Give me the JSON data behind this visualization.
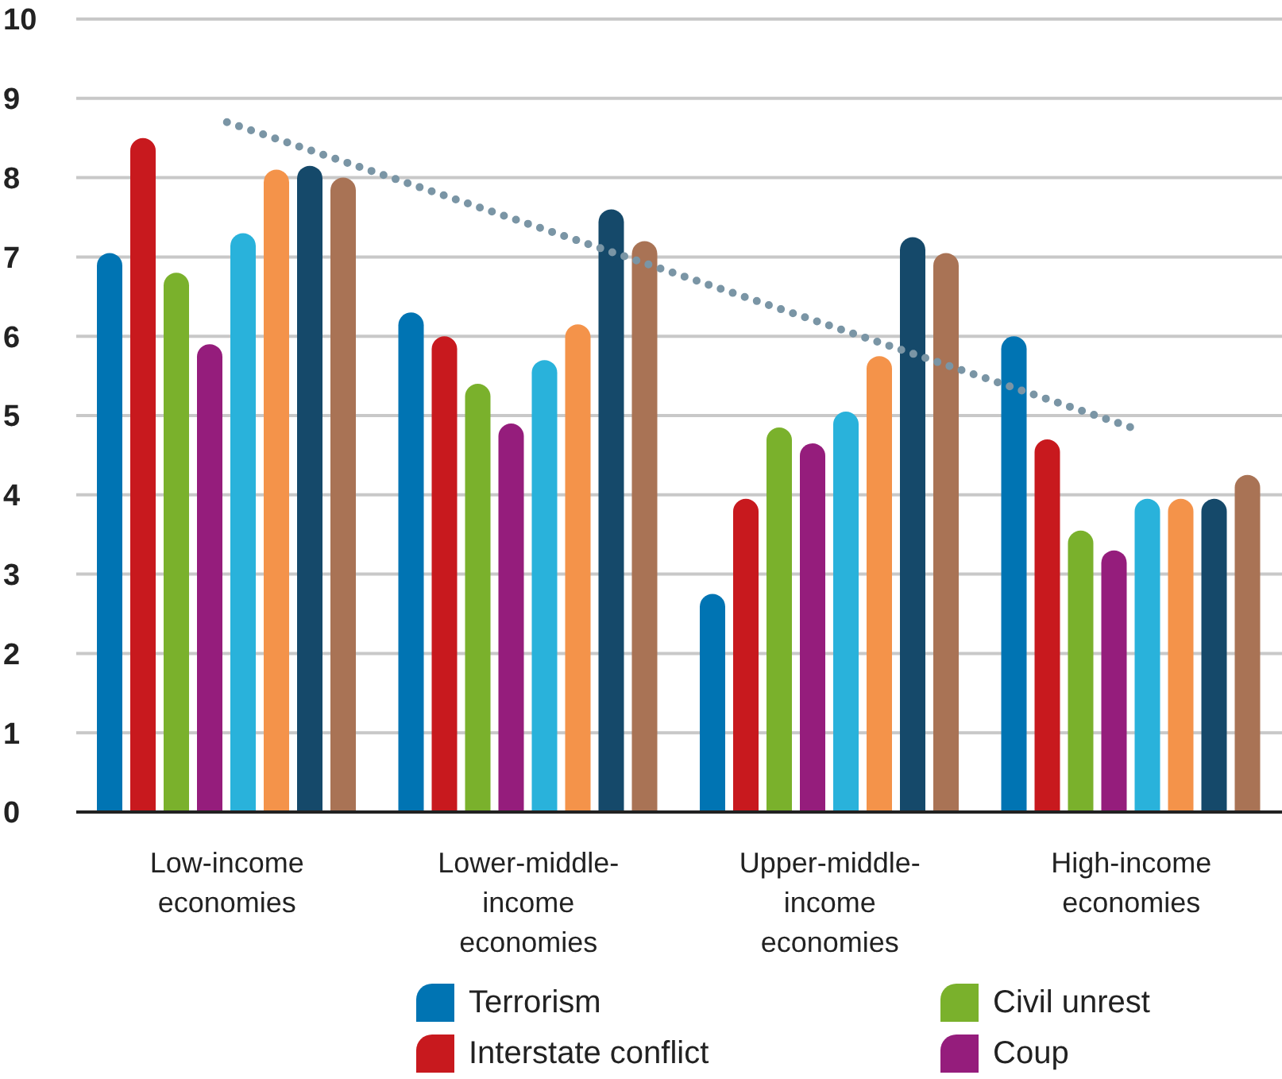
{
  "chart_data": {
    "type": "bar",
    "categories": [
      "Low-income economies",
      "Lower-middle-income economies",
      "Upper-middle-income economies",
      "High-income economies"
    ],
    "series": [
      {
        "name": "Terrorism",
        "color": "#0074b3",
        "values": [
          7.05,
          6.3,
          2.75,
          6.0
        ]
      },
      {
        "name": "Interstate conflict",
        "color": "#c8191e",
        "values": [
          8.5,
          6.0,
          3.95,
          4.7
        ]
      },
      {
        "name": "Civil unrest",
        "color": "#7ab12c",
        "values": [
          6.8,
          5.4,
          4.85,
          3.55
        ]
      },
      {
        "name": "Coup",
        "color": "#951d7c",
        "values": [
          5.9,
          4.9,
          4.65,
          3.3
        ]
      },
      {
        "color": "#29b2db",
        "values": [
          7.3,
          5.7,
          5.05,
          3.95
        ]
      },
      {
        "color": "#f4934a",
        "values": [
          8.1,
          6.15,
          5.75,
          3.95
        ]
      },
      {
        "color": "#15496a",
        "values": [
          8.15,
          7.6,
          7.25,
          3.95
        ]
      },
      {
        "color": "#a97355",
        "values": [
          8.0,
          7.2,
          7.05,
          4.25
        ]
      },
      {
        "type": "line",
        "color": "#7a95a5",
        "line_style": "dotted",
        "marker": "none",
        "x": [
          "Low-income economies",
          "High-income economies"
        ],
        "values": [
          8.7,
          4.85
        ]
      }
    ],
    "ylim": [
      0,
      10
    ],
    "yticks": [
      0,
      1,
      2,
      3,
      4,
      5,
      6,
      7,
      8,
      9,
      10
    ],
    "grid": "y",
    "legend": "bottom"
  }
}
